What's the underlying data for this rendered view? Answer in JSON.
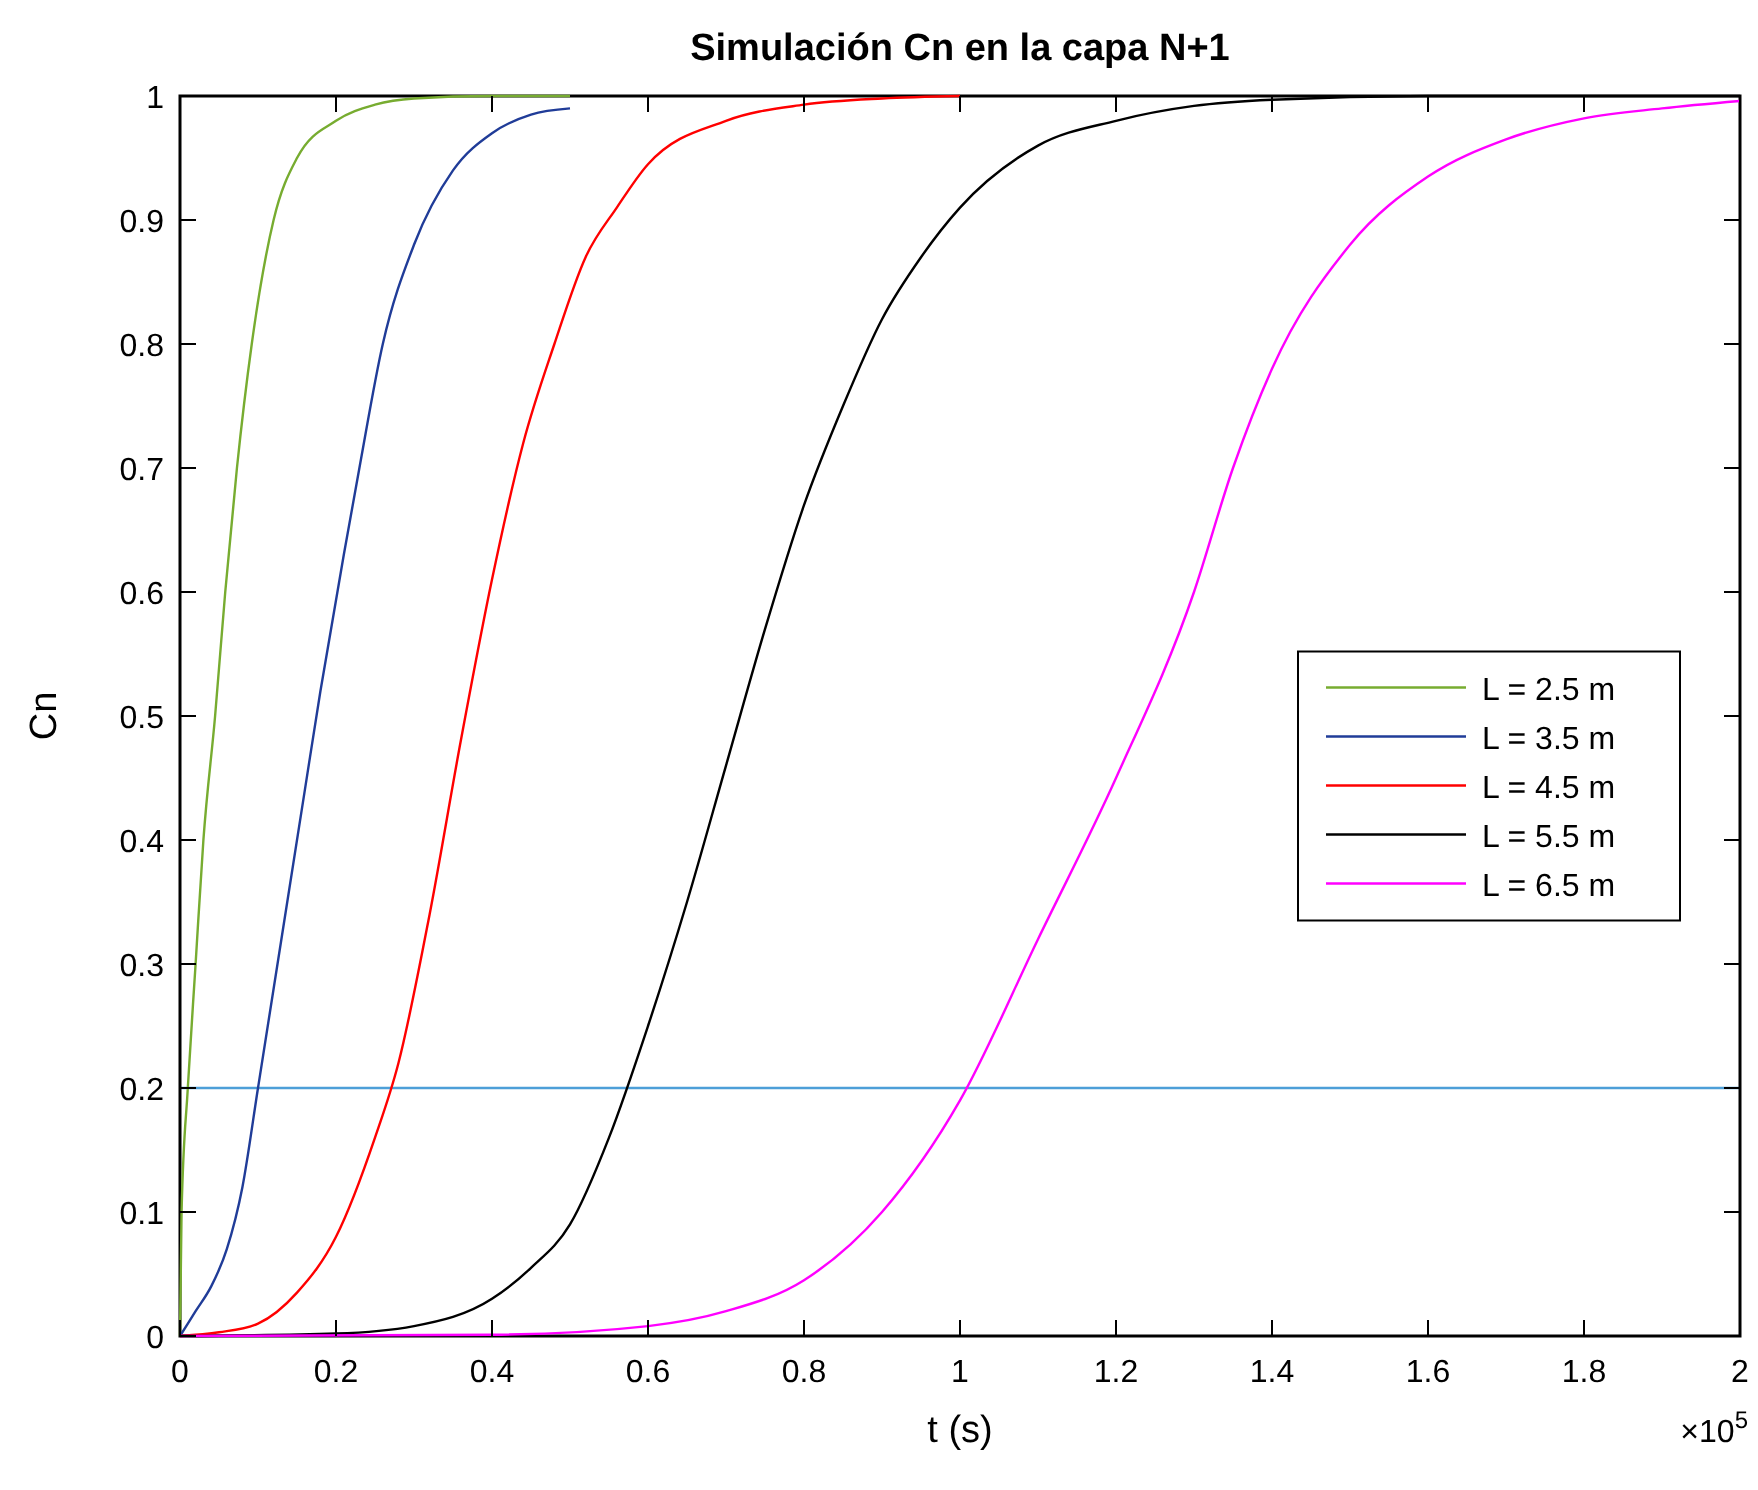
{
  "chart_data": {
    "type": "line",
    "title": "Simulación Cn en la capa N+1",
    "xlabel": "t (s)",
    "ylabel": "Cn",
    "annotations": [
      "×10$^{5}$"
    ],
    "xlim": [
      0,
      2
    ],
    "xticks": [
      0,
      0.2,
      0.4,
      0.6,
      0.8,
      1,
      1.2,
      1.4,
      1.6,
      1.8,
      2
    ],
    "ylim": [
      0,
      1
    ],
    "yticks": [
      0,
      0.1,
      0.2,
      0.3,
      0.4,
      0.5,
      0.6,
      0.7,
      0.8,
      0.9,
      1
    ],
    "grid": false,
    "legend": "right",
    "marker": "none",
    "line_style": "solid",
    "ref_lines": [
      {
        "axis": "y",
        "value": 0.2,
        "color": "#4d9fd8"
      }
    ],
    "series": [
      {
        "name": "L = 2.5 m",
        "color": "#77ac30",
        "x": [
          0,
          0.002,
          0.01,
          0.02,
          0.03,
          0.045,
          0.058,
          0.073,
          0.092,
          0.12,
          0.15,
          0.2,
          0.25,
          0.3,
          0.4,
          0.5
        ],
        "values": [
          0,
          0.1,
          0.2,
          0.3,
          0.4,
          0.5,
          0.6,
          0.7,
          0.8,
          0.9,
          0.95,
          0.98,
          0.993,
          0.998,
          1,
          1
        ]
      },
      {
        "name": "L = 3.5 m",
        "color": "#203c98",
        "x": [
          0,
          0.02,
          0.04,
          0.06,
          0.08,
          0.1,
          0.13,
          0.16,
          0.18,
          0.21,
          0.23,
          0.26,
          0.3,
          0.35,
          0.4,
          0.45,
          0.5
        ],
        "values": [
          0,
          0.02,
          0.04,
          0.07,
          0.12,
          0.2,
          0.32,
          0.44,
          0.52,
          0.63,
          0.7,
          0.8,
          0.88,
          0.94,
          0.97,
          0.985,
          0.99
        ]
      },
      {
        "name": "L = 4.5 m",
        "color": "#ff0000",
        "x": [
          0,
          0.05,
          0.1,
          0.15,
          0.2,
          0.25,
          0.28,
          0.32,
          0.36,
          0.4,
          0.44,
          0.48,
          0.52,
          0.56,
          0.6,
          0.7,
          0.8,
          0.9,
          1.0
        ],
        "values": [
          0,
          0.003,
          0.01,
          0.035,
          0.08,
          0.16,
          0.22,
          0.34,
          0.48,
          0.61,
          0.72,
          0.8,
          0.87,
          0.91,
          0.945,
          0.98,
          0.993,
          0.998,
          1
        ]
      },
      {
        "name": "L = 5.5 m",
        "color": "#000000",
        "x": [
          0,
          0.2,
          0.3,
          0.4,
          0.45,
          0.5,
          0.55,
          0.6,
          0.65,
          0.7,
          0.75,
          0.8,
          0.85,
          0.9,
          0.95,
          1.0,
          1.1,
          1.2,
          1.3,
          1.4,
          1.6,
          2.0
        ],
        "values": [
          0,
          0.002,
          0.008,
          0.03,
          0.055,
          0.09,
          0.16,
          0.25,
          0.35,
          0.46,
          0.57,
          0.67,
          0.75,
          0.82,
          0.87,
          0.91,
          0.96,
          0.98,
          0.992,
          0.997,
          1,
          1
        ]
      },
      {
        "name": "L = 6.5 m",
        "color": "#ff00ff",
        "x": [
          0,
          0.4,
          0.6,
          0.7,
          0.8,
          0.9,
          1.0,
          1.1,
          1.2,
          1.3,
          1.35,
          1.4,
          1.5,
          1.6,
          1.7,
          1.8,
          1.9,
          2.0
        ],
        "values": [
          0,
          0.001,
          0.008,
          0.02,
          0.045,
          0.1,
          0.19,
          0.32,
          0.45,
          0.6,
          0.7,
          0.78,
          0.88,
          0.935,
          0.965,
          0.982,
          0.99,
          0.996
        ]
      }
    ]
  }
}
